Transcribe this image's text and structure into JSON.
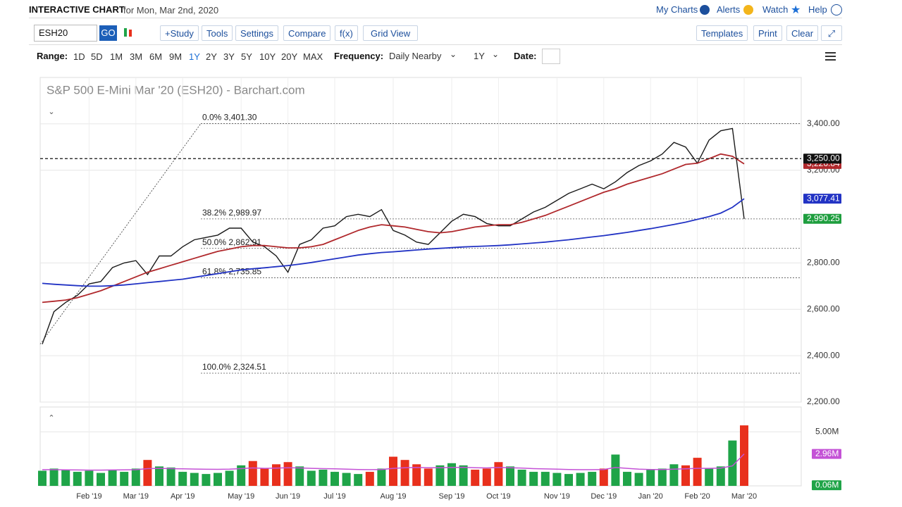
{
  "header": {
    "title": "INTERACTIVE CHART",
    "date": "for Mon, Mar 2nd, 2020",
    "links": [
      "My Charts",
      "Alerts",
      "Watch",
      "Help"
    ]
  },
  "toolbar": {
    "symbol": "ESH20",
    "go": "GO",
    "buttons": [
      "+Study",
      "Tools",
      "Settings",
      "Compare",
      "f(x)",
      "Grid View"
    ],
    "right_buttons": [
      "Templates",
      "Print",
      "Clear"
    ]
  },
  "range_bar": {
    "range_label": "Range:",
    "ranges": [
      "1D",
      "5D",
      "1M",
      "3M",
      "6M",
      "9M",
      "1Y",
      "2Y",
      "3Y",
      "5Y",
      "10Y",
      "20Y",
      "MAX"
    ],
    "frequency_label": "Frequency:",
    "frequency": "Daily Nearby",
    "period": "1Y",
    "date_label": "Date:"
  },
  "chart_data": {
    "type": "line",
    "title": "S&P 500 E-Mini Mar '20 (ESH20) - Barchart.com",
    "categories": [
      null,
      null,
      null,
      null,
      "Feb '19",
      null,
      null,
      null,
      "Mar '19",
      null,
      null,
      null,
      "Apr '19",
      null,
      null,
      null,
      null,
      "May '19",
      null,
      null,
      null,
      "Jun '19",
      null,
      null,
      null,
      "Jul '19",
      null,
      null,
      null,
      null,
      "Aug '19",
      null,
      null,
      null,
      null,
      "Sep '19",
      null,
      null,
      null,
      "Oct '19",
      null,
      null,
      null,
      null,
      "Nov '19",
      null,
      null,
      null,
      "Dec '19",
      null,
      null,
      null,
      "Jan '20",
      null,
      null,
      null,
      "Feb '20",
      null,
      null,
      null,
      "Mar '20"
    ],
    "series": [
      {
        "color": "#1a1a1a",
        "values": [
          2450,
          2590,
          2630,
          2660,
          2710,
          2720,
          2780,
          2800,
          2810,
          2750,
          2830,
          2830,
          2870,
          2900,
          2910,
          2920,
          2950,
          2950,
          2890,
          2870,
          2830,
          2760,
          2880,
          2900,
          2950,
          2960,
          3000,
          3010,
          3000,
          3030,
          2940,
          2920,
          2890,
          2880,
          2930,
          2980,
          3010,
          3000,
          2970,
          2960,
          2960,
          2990,
          3020,
          3040,
          3070,
          3100,
          3120,
          3140,
          3120,
          3150,
          3190,
          3220,
          3240,
          3270,
          3320,
          3300,
          3230,
          3330,
          3370,
          3380,
          2990
        ]
      },
      {
        "color": "#b0282c",
        "values": [
          2630,
          2635,
          2640,
          2650,
          2665,
          2680,
          2700,
          2720,
          2740,
          2760,
          2775,
          2790,
          2805,
          2820,
          2835,
          2850,
          2860,
          2870,
          2875,
          2875,
          2870,
          2865,
          2865,
          2870,
          2880,
          2900,
          2920,
          2940,
          2955,
          2965,
          2960,
          2955,
          2945,
          2935,
          2930,
          2935,
          2945,
          2955,
          2960,
          2965,
          2965,
          2975,
          2990,
          3005,
          3025,
          3045,
          3065,
          3085,
          3105,
          3120,
          3140,
          3155,
          3170,
          3185,
          3205,
          3225,
          3230,
          3250,
          3270,
          3260,
          3227
        ]
      },
      {
        "color": "#2233c4",
        "values": [
          2712,
          2708,
          2705,
          2702,
          2700,
          2700,
          2702,
          2705,
          2710,
          2715,
          2720,
          2725,
          2730,
          2738,
          2746,
          2754,
          2762,
          2770,
          2775,
          2779,
          2784,
          2789,
          2795,
          2802,
          2810,
          2818,
          2826,
          2834,
          2840,
          2845,
          2848,
          2852,
          2856,
          2860,
          2863,
          2866,
          2869,
          2871,
          2873,
          2875,
          2878,
          2882,
          2886,
          2890,
          2895,
          2900,
          2906,
          2912,
          2918,
          2925,
          2932,
          2940,
          2948,
          2957,
          2966,
          2976,
          2988,
          3000,
          3015,
          3040,
          3077
        ]
      }
    ],
    "ylim": [
      2200,
      3600
    ],
    "yticks": [
      {
        "value": 2200,
        "label": "2,200.00"
      },
      {
        "value": 2400,
        "label": "2,400.00"
      },
      {
        "value": 2600,
        "label": "2,600.00"
      },
      {
        "value": 2800,
        "label": "2,800.00"
      },
      {
        "value": 3200,
        "label": "3,200.00"
      },
      {
        "value": 3400,
        "label": "3,400.00"
      }
    ],
    "grid": true,
    "fib_levels": [
      {
        "value": 3401.3,
        "label": "0.0% 3,401.30"
      },
      {
        "value": 2989.97,
        "label": "38.2% 2,989.97"
      },
      {
        "value": 2862.91,
        "label": "50.0% 2,862.91"
      },
      {
        "value": 2735.85,
        "label": "61.8% 2,735.85"
      },
      {
        "value": 2324.51,
        "label": "100.0% 2,324.51"
      }
    ],
    "price_tags": [
      {
        "value": 3226.84,
        "label": "3,226.84",
        "color": "#b0282c"
      },
      {
        "value": 3250,
        "label": "3,250.00",
        "color": "#111111",
        "dashed_line": true
      },
      {
        "value": 3077.41,
        "label": "3,077.41",
        "color": "#2233c4"
      },
      {
        "value": 2990.25,
        "label": "2,990.25",
        "color": "#1e9e3e"
      }
    ],
    "volume": {
      "values": [
        1.4,
        1.6,
        1.5,
        1.3,
        1.4,
        1.2,
        1.5,
        1.3,
        1.6,
        2.4,
        1.8,
        1.7,
        1.3,
        1.2,
        1.1,
        1.2,
        1.4,
        1.9,
        2.3,
        1.6,
        2.0,
        2.2,
        1.8,
        1.4,
        1.5,
        1.3,
        1.2,
        1.1,
        1.3,
        1.6,
        2.7,
        2.4,
        2.0,
        1.6,
        1.9,
        2.1,
        1.9,
        1.5,
        1.6,
        2.2,
        1.8,
        1.5,
        1.3,
        1.3,
        1.2,
        1.1,
        1.2,
        1.3,
        1.6,
        2.9,
        1.3,
        1.2,
        1.5,
        1.6,
        2.0,
        1.9,
        2.6,
        1.6,
        1.8,
        4.2,
        5.6
      ],
      "ma": [
        1.5,
        1.5,
        1.48,
        1.47,
        1.46,
        1.46,
        1.47,
        1.48,
        1.5,
        1.6,
        1.62,
        1.6,
        1.58,
        1.56,
        1.54,
        1.53,
        1.55,
        1.6,
        1.66,
        1.62,
        1.65,
        1.68,
        1.66,
        1.62,
        1.6,
        1.58,
        1.55,
        1.52,
        1.5,
        1.52,
        1.62,
        1.68,
        1.7,
        1.68,
        1.68,
        1.7,
        1.72,
        1.68,
        1.66,
        1.7,
        1.68,
        1.64,
        1.6,
        1.57,
        1.55,
        1.52,
        1.5,
        1.5,
        1.52,
        1.7,
        1.62,
        1.55,
        1.52,
        1.52,
        1.55,
        1.58,
        1.62,
        1.62,
        1.65,
        1.85,
        2.96
      ],
      "up_color": "#1fa448",
      "down_color": "#e8301c",
      "ma_color": "#c452d6",
      "ylim": [
        0,
        7.3
      ],
      "yticks": [
        {
          "value": 5,
          "label": "5.00M"
        }
      ],
      "tags": [
        {
          "value": 2.96,
          "label": "2.96M",
          "color": "#c452d6"
        },
        {
          "value": 0.06,
          "label": "0.06M",
          "color": "#1fa448"
        }
      ]
    }
  }
}
